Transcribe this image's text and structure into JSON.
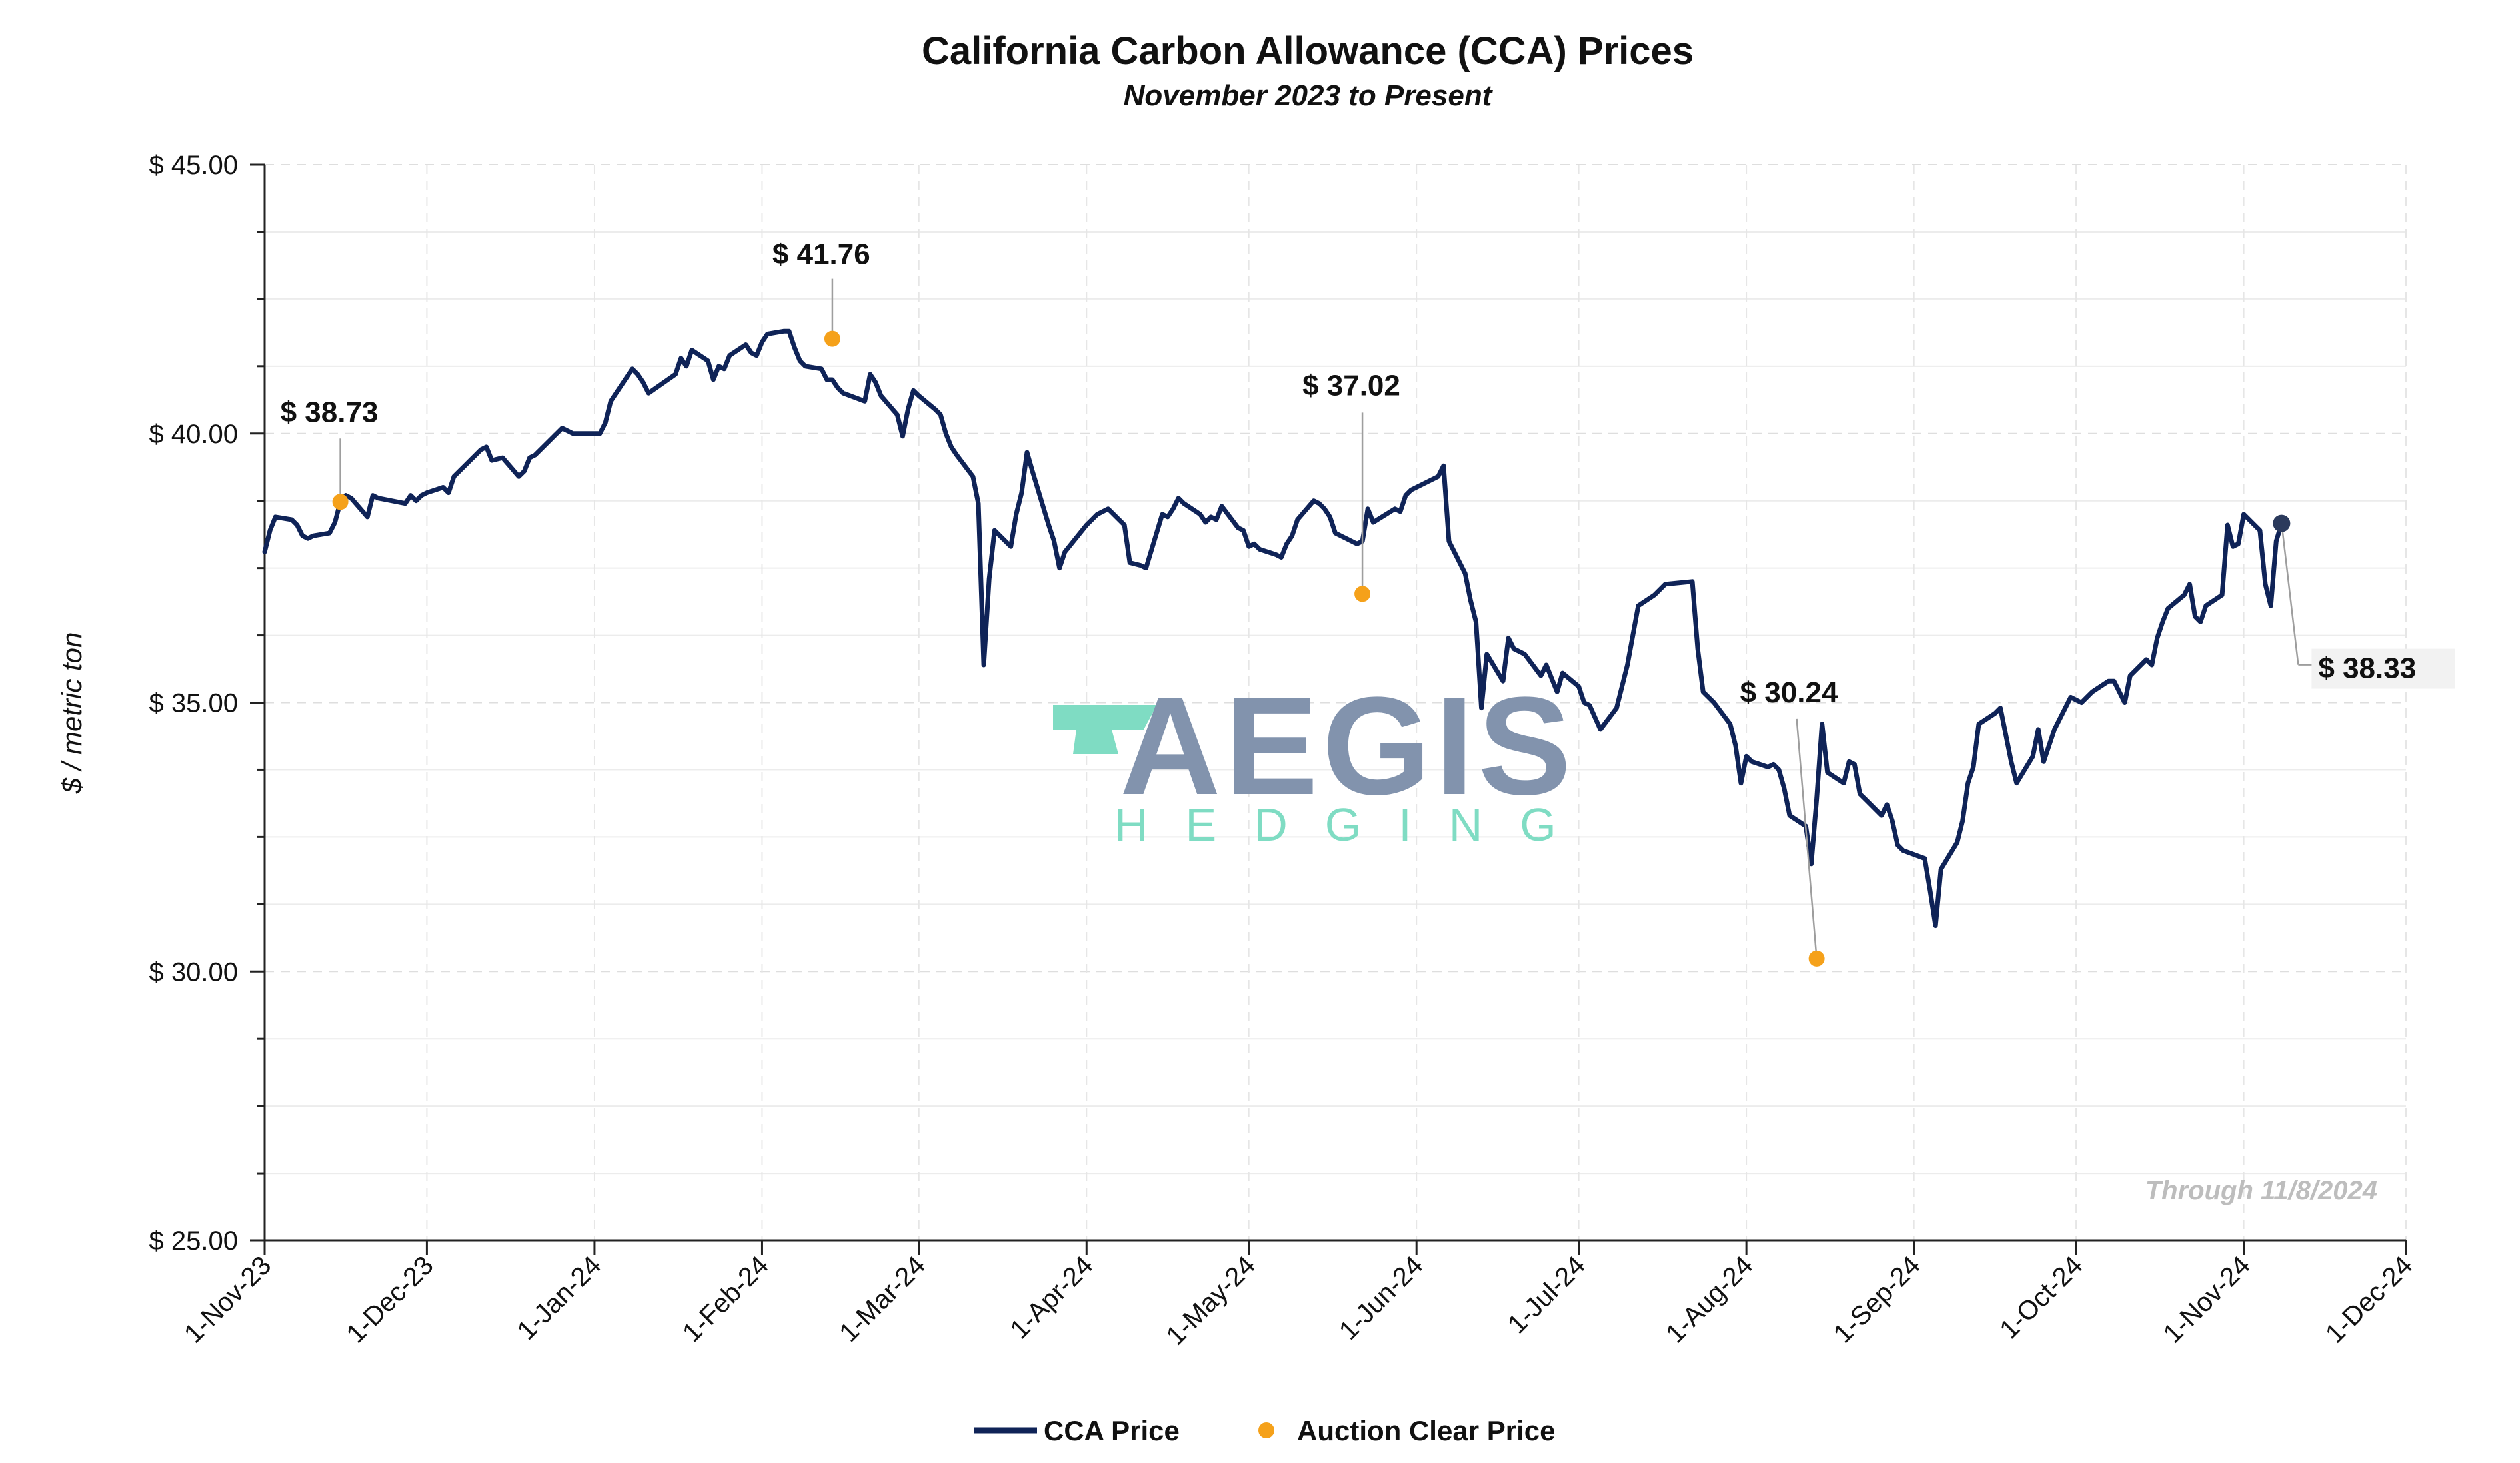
{
  "chart_data": {
    "type": "line",
    "title": "California Carbon Allowance (CCA) Prices",
    "subtitle": "November 2023 to Present",
    "ylabel": "$ / metric ton",
    "ylim": [
      25,
      45
    ],
    "y_ticks": [
      25,
      30,
      35,
      40,
      45
    ],
    "y_tick_labels": [
      "$ 25.00",
      "$ 30.00",
      "$ 35.00",
      "$ 40.00",
      "$ 45.00"
    ],
    "x_range": [
      "2023-11-01",
      "2024-12-01"
    ],
    "x_ticks": [
      "2023-11-01",
      "2023-12-01",
      "2024-01-01",
      "2024-02-01",
      "2024-03-01",
      "2024-04-01",
      "2024-05-01",
      "2024-06-01",
      "2024-07-01",
      "2024-08-01",
      "2024-09-01",
      "2024-10-01",
      "2024-11-01",
      "2024-12-01"
    ],
    "x_tick_labels": [
      "1-Nov-23",
      "1-Dec-23",
      "1-Jan-24",
      "1-Feb-24",
      "1-Mar-24",
      "1-Apr-24",
      "1-May-24",
      "1-Jun-24",
      "1-Jul-24",
      "1-Aug-24",
      "1-Sep-24",
      "1-Oct-24",
      "1-Nov-24",
      "1-Dec-24"
    ],
    "grid": true,
    "legend_position": "bottom",
    "series": [
      {
        "name": "CCA Price",
        "color": "#0f2357",
        "points": [
          [
            "2023-11-01",
            37.8
          ],
          [
            "2023-11-02",
            38.2
          ],
          [
            "2023-11-03",
            38.45
          ],
          [
            "2023-11-06",
            38.4
          ],
          [
            "2023-11-07",
            38.3
          ],
          [
            "2023-11-08",
            38.1
          ],
          [
            "2023-11-09",
            38.05
          ],
          [
            "2023-11-10",
            38.1
          ],
          [
            "2023-11-13",
            38.15
          ],
          [
            "2023-11-14",
            38.35
          ],
          [
            "2023-11-15",
            38.73
          ],
          [
            "2023-11-16",
            38.85
          ],
          [
            "2023-11-17",
            38.8
          ],
          [
            "2023-11-20",
            38.45
          ],
          [
            "2023-11-21",
            38.85
          ],
          [
            "2023-11-22",
            38.8
          ],
          [
            "2023-11-27",
            38.7
          ],
          [
            "2023-11-28",
            38.85
          ],
          [
            "2023-11-29",
            38.75
          ],
          [
            "2023-11-30",
            38.85
          ],
          [
            "2023-12-01",
            38.9
          ],
          [
            "2023-12-04",
            39.0
          ],
          [
            "2023-12-05",
            38.9
          ],
          [
            "2023-12-06",
            39.2
          ],
          [
            "2023-12-07",
            39.3
          ],
          [
            "2023-12-08",
            39.4
          ],
          [
            "2023-12-11",
            39.7
          ],
          [
            "2023-12-12",
            39.75
          ],
          [
            "2023-12-13",
            39.5
          ],
          [
            "2023-12-15",
            39.55
          ],
          [
            "2023-12-18",
            39.2
          ],
          [
            "2023-12-19",
            39.3
          ],
          [
            "2023-12-20",
            39.55
          ],
          [
            "2023-12-21",
            39.6
          ],
          [
            "2023-12-22",
            39.7
          ],
          [
            "2023-12-26",
            40.1
          ],
          [
            "2023-12-27",
            40.05
          ],
          [
            "2023-12-28",
            40.0
          ],
          [
            "2024-01-02",
            40.0
          ],
          [
            "2024-01-03",
            40.2
          ],
          [
            "2024-01-04",
            40.6
          ],
          [
            "2024-01-05",
            40.75
          ],
          [
            "2024-01-08",
            41.2
          ],
          [
            "2024-01-09",
            41.1
          ],
          [
            "2024-01-10",
            40.95
          ],
          [
            "2024-01-11",
            40.75
          ],
          [
            "2024-01-16",
            41.1
          ],
          [
            "2024-01-17",
            41.4
          ],
          [
            "2024-01-18",
            41.25
          ],
          [
            "2024-01-19",
            41.55
          ],
          [
            "2024-01-22",
            41.35
          ],
          [
            "2024-01-23",
            41.0
          ],
          [
            "2024-01-24",
            41.25
          ],
          [
            "2024-01-25",
            41.2
          ],
          [
            "2024-01-26",
            41.45
          ],
          [
            "2024-01-29",
            41.65
          ],
          [
            "2024-01-30",
            41.5
          ],
          [
            "2024-01-31",
            41.45
          ],
          [
            "2024-02-01",
            41.7
          ],
          [
            "2024-02-02",
            41.85
          ],
          [
            "2024-02-05",
            41.9
          ],
          [
            "2024-02-06",
            41.9
          ],
          [
            "2024-02-07",
            41.6
          ],
          [
            "2024-02-08",
            41.35
          ],
          [
            "2024-02-09",
            41.25
          ],
          [
            "2024-02-12",
            41.2
          ],
          [
            "2024-02-13",
            41.0
          ],
          [
            "2024-02-14",
            41.0
          ],
          [
            "2024-02-15",
            40.85
          ],
          [
            "2024-02-16",
            40.75
          ],
          [
            "2024-02-20",
            40.6
          ],
          [
            "2024-02-21",
            41.1
          ],
          [
            "2024-02-22",
            40.95
          ],
          [
            "2024-02-23",
            40.7
          ],
          [
            "2024-02-26",
            40.35
          ],
          [
            "2024-02-27",
            39.95
          ],
          [
            "2024-02-28",
            40.45
          ],
          [
            "2024-02-29",
            40.8
          ],
          [
            "2024-03-01",
            40.7
          ],
          [
            "2024-03-04",
            40.45
          ],
          [
            "2024-03-05",
            40.35
          ],
          [
            "2024-03-06",
            40.0
          ],
          [
            "2024-03-07",
            39.75
          ],
          [
            "2024-03-08",
            39.6
          ],
          [
            "2024-03-11",
            39.2
          ],
          [
            "2024-03-12",
            38.7
          ],
          [
            "2024-03-13",
            35.7
          ],
          [
            "2024-03-14",
            37.3
          ],
          [
            "2024-03-15",
            38.2
          ],
          [
            "2024-03-18",
            37.9
          ],
          [
            "2024-03-19",
            38.5
          ],
          [
            "2024-03-20",
            38.9
          ],
          [
            "2024-03-21",
            39.65
          ],
          [
            "2024-03-22",
            39.3
          ],
          [
            "2024-03-25",
            38.3
          ],
          [
            "2024-03-26",
            38.0
          ],
          [
            "2024-03-27",
            37.5
          ],
          [
            "2024-03-28",
            37.8
          ],
          [
            "2024-04-01",
            38.3
          ],
          [
            "2024-04-02",
            38.4
          ],
          [
            "2024-04-03",
            38.5
          ],
          [
            "2024-04-05",
            38.6
          ],
          [
            "2024-04-08",
            38.3
          ],
          [
            "2024-04-09",
            37.6
          ],
          [
            "2024-04-11",
            37.55
          ],
          [
            "2024-04-12",
            37.5
          ],
          [
            "2024-04-15",
            38.5
          ],
          [
            "2024-04-16",
            38.45
          ],
          [
            "2024-04-17",
            38.6
          ],
          [
            "2024-04-18",
            38.8
          ],
          [
            "2024-04-19",
            38.7
          ],
          [
            "2024-04-22",
            38.5
          ],
          [
            "2024-04-23",
            38.35
          ],
          [
            "2024-04-24",
            38.45
          ],
          [
            "2024-04-25",
            38.4
          ],
          [
            "2024-04-26",
            38.65
          ],
          [
            "2024-04-29",
            38.25
          ],
          [
            "2024-04-30",
            38.2
          ],
          [
            "2024-05-01",
            37.9
          ],
          [
            "2024-05-02",
            37.95
          ],
          [
            "2024-05-03",
            37.85
          ],
          [
            "2024-05-06",
            37.75
          ],
          [
            "2024-05-07",
            37.7
          ],
          [
            "2024-05-08",
            37.95
          ],
          [
            "2024-05-09",
            38.1
          ],
          [
            "2024-05-10",
            38.4
          ],
          [
            "2024-05-13",
            38.75
          ],
          [
            "2024-05-14",
            38.7
          ],
          [
            "2024-05-15",
            38.6
          ],
          [
            "2024-05-16",
            38.45
          ],
          [
            "2024-05-17",
            38.15
          ],
          [
            "2024-05-20",
            38.0
          ],
          [
            "2024-05-21",
            37.95
          ],
          [
            "2024-05-22",
            38.0
          ],
          [
            "2024-05-23",
            38.6
          ],
          [
            "2024-05-24",
            38.35
          ],
          [
            "2024-05-28",
            38.6
          ],
          [
            "2024-05-29",
            38.55
          ],
          [
            "2024-05-30",
            38.85
          ],
          [
            "2024-05-31",
            38.95
          ],
          [
            "2024-06-03",
            39.1
          ],
          [
            "2024-06-04",
            39.15
          ],
          [
            "2024-06-05",
            39.2
          ],
          [
            "2024-06-06",
            39.4
          ],
          [
            "2024-06-07",
            38.0
          ],
          [
            "2024-06-10",
            37.4
          ],
          [
            "2024-06-11",
            36.9
          ],
          [
            "2024-06-12",
            36.5
          ],
          [
            "2024-06-13",
            34.9
          ],
          [
            "2024-06-14",
            35.9
          ],
          [
            "2024-06-17",
            35.4
          ],
          [
            "2024-06-18",
            36.2
          ],
          [
            "2024-06-19",
            36.0
          ],
          [
            "2024-06-20",
            35.95
          ],
          [
            "2024-06-21",
            35.9
          ],
          [
            "2024-06-24",
            35.5
          ],
          [
            "2024-06-25",
            35.7
          ],
          [
            "2024-06-26",
            35.45
          ],
          [
            "2024-06-27",
            35.2
          ],
          [
            "2024-06-28",
            35.55
          ],
          [
            "2024-07-01",
            35.3
          ],
          [
            "2024-07-02",
            35.0
          ],
          [
            "2024-07-03",
            34.95
          ],
          [
            "2024-07-05",
            34.5
          ],
          [
            "2024-07-08",
            34.9
          ],
          [
            "2024-07-10",
            35.7
          ],
          [
            "2024-07-12",
            36.8
          ],
          [
            "2024-07-15",
            37.0
          ],
          [
            "2024-07-17",
            37.2
          ],
          [
            "2024-07-19",
            37.22
          ],
          [
            "2024-07-22",
            37.25
          ],
          [
            "2024-07-23",
            36.0
          ],
          [
            "2024-07-24",
            35.2
          ],
          [
            "2024-07-26",
            35.0
          ],
          [
            "2024-07-29",
            34.6
          ],
          [
            "2024-07-30",
            34.2
          ],
          [
            "2024-07-31",
            33.5
          ],
          [
            "2024-08-01",
            34.0
          ],
          [
            "2024-08-02",
            33.9
          ],
          [
            "2024-08-05",
            33.8
          ],
          [
            "2024-08-06",
            33.85
          ],
          [
            "2024-08-07",
            33.75
          ],
          [
            "2024-08-08",
            33.4
          ],
          [
            "2024-08-09",
            32.9
          ],
          [
            "2024-08-12",
            32.7
          ],
          [
            "2024-08-13",
            32.0
          ],
          [
            "2024-08-14",
            33.2
          ],
          [
            "2024-08-15",
            34.6
          ],
          [
            "2024-08-16",
            33.7
          ],
          [
            "2024-08-19",
            33.5
          ],
          [
            "2024-08-20",
            33.9
          ],
          [
            "2024-08-21",
            33.85
          ],
          [
            "2024-08-22",
            33.3
          ],
          [
            "2024-08-23",
            33.2
          ],
          [
            "2024-08-26",
            32.9
          ],
          [
            "2024-08-27",
            33.1
          ],
          [
            "2024-08-28",
            32.8
          ],
          [
            "2024-08-29",
            32.35
          ],
          [
            "2024-08-30",
            32.25
          ],
          [
            "2024-09-03",
            32.1
          ],
          [
            "2024-09-04",
            31.5
          ],
          [
            "2024-09-05",
            30.85
          ],
          [
            "2024-09-06",
            31.9
          ],
          [
            "2024-09-09",
            32.4
          ],
          [
            "2024-09-10",
            32.8
          ],
          [
            "2024-09-11",
            33.5
          ],
          [
            "2024-09-12",
            33.8
          ],
          [
            "2024-09-13",
            34.6
          ],
          [
            "2024-09-16",
            34.8
          ],
          [
            "2024-09-17",
            34.9
          ],
          [
            "2024-09-18",
            34.4
          ],
          [
            "2024-09-19",
            33.9
          ],
          [
            "2024-09-20",
            33.5
          ],
          [
            "2024-09-23",
            34.0
          ],
          [
            "2024-09-24",
            34.5
          ],
          [
            "2024-09-25",
            33.9
          ],
          [
            "2024-09-26",
            34.2
          ],
          [
            "2024-09-27",
            34.5
          ],
          [
            "2024-09-30",
            35.1
          ],
          [
            "2024-10-01",
            35.05
          ],
          [
            "2024-10-02",
            35.0
          ],
          [
            "2024-10-03",
            35.1
          ],
          [
            "2024-10-04",
            35.2
          ],
          [
            "2024-10-07",
            35.4
          ],
          [
            "2024-10-08",
            35.4
          ],
          [
            "2024-10-09",
            35.2
          ],
          [
            "2024-10-10",
            35.0
          ],
          [
            "2024-10-11",
            35.5
          ],
          [
            "2024-10-14",
            35.8
          ],
          [
            "2024-10-15",
            35.7
          ],
          [
            "2024-10-16",
            36.2
          ],
          [
            "2024-10-17",
            36.5
          ],
          [
            "2024-10-18",
            36.75
          ],
          [
            "2024-10-21",
            37.0
          ],
          [
            "2024-10-22",
            37.2
          ],
          [
            "2024-10-23",
            36.6
          ],
          [
            "2024-10-24",
            36.5
          ],
          [
            "2024-10-25",
            36.8
          ],
          [
            "2024-10-28",
            37.0
          ],
          [
            "2024-10-29",
            38.3
          ],
          [
            "2024-10-30",
            37.9
          ],
          [
            "2024-10-31",
            37.95
          ],
          [
            "2024-11-01",
            38.5
          ],
          [
            "2024-11-04",
            38.2
          ],
          [
            "2024-11-05",
            37.2
          ],
          [
            "2024-11-06",
            36.8
          ],
          [
            "2024-11-07",
            38.0
          ],
          [
            "2024-11-08",
            38.33
          ]
        ]
      },
      {
        "name": "Auction Clear Price",
        "color": "#f5a11a",
        "points": [
          [
            "2023-11-15",
            38.73
          ],
          [
            "2024-02-14",
            41.76
          ],
          [
            "2024-05-22",
            37.02
          ],
          [
            "2024-08-14",
            30.24
          ]
        ]
      }
    ],
    "annotations": [
      {
        "text": "$ 38.73",
        "date": "2023-11-15",
        "value": 38.73
      },
      {
        "text": "$ 41.76",
        "date": "2024-02-14",
        "value": 41.76
      },
      {
        "text": "$ 37.02",
        "date": "2024-05-22",
        "value": 37.02
      },
      {
        "text": "$ 30.24",
        "date": "2024-08-14",
        "value": 30.24
      },
      {
        "text": "$ 38.33",
        "date": "2024-11-08",
        "value": 38.33
      }
    ],
    "footnote": "Through 11/8/2024"
  },
  "watermark": {
    "line1": "AEGIS",
    "line2": "HEDGING",
    "color_primary": "#8293ad",
    "color_accent": "#7fdcc3"
  },
  "colors": {
    "line": "#0f2357",
    "auction": "#f5a11a",
    "grid": "#e6e6e6"
  }
}
